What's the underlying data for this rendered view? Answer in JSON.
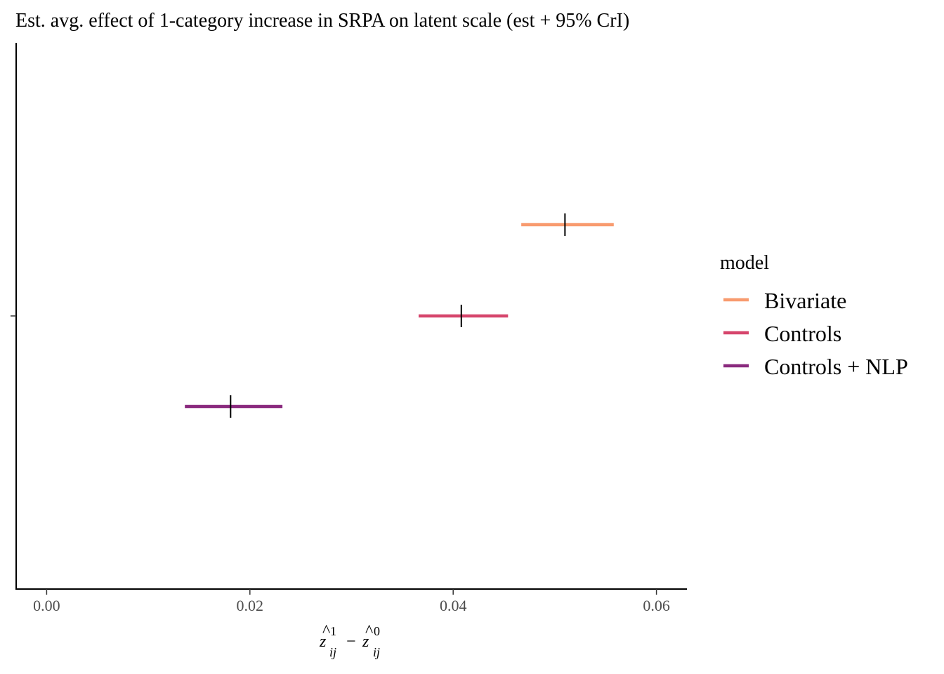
{
  "chart_data": {
    "type": "interval",
    "title": "Est. avg. effect of 1-category increase in SRPA on latent scale (est + 95% CrI)",
    "xlabel": {
      "symbol": "z",
      "accent": "^",
      "sup1": "1",
      "sup2": "0",
      "sub": "ij",
      "operator": "−"
    },
    "ylabel": "",
    "xlim": [
      -0.003,
      0.063
    ],
    "x_ticks": [
      0.0,
      0.02,
      0.04,
      0.06
    ],
    "x_tick_labels": [
      "0.00",
      "0.02",
      "0.04",
      "0.06"
    ],
    "grid": false,
    "legend": {
      "title": "model",
      "position": "right"
    },
    "series": [
      {
        "name": "Bivariate",
        "estimate": 0.051,
        "lower": 0.0467,
        "upper": 0.0558,
        "color": "#F89B6F"
      },
      {
        "name": "Controls",
        "estimate": 0.0408,
        "lower": 0.0366,
        "upper": 0.0454,
        "color": "#D6456C"
      },
      {
        "name": "Controls + NLP",
        "estimate": 0.0181,
        "lower": 0.0136,
        "upper": 0.0232,
        "color": "#8A2A7E"
      }
    ]
  }
}
